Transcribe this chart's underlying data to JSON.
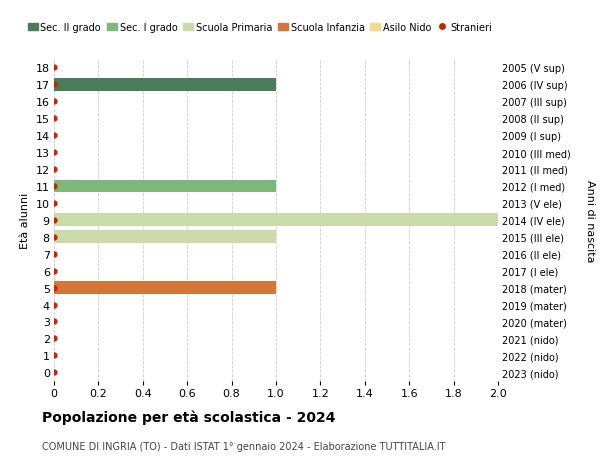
{
  "ages": [
    0,
    1,
    2,
    3,
    4,
    5,
    6,
    7,
    8,
    9,
    10,
    11,
    12,
    13,
    14,
    15,
    16,
    17,
    18
  ],
  "birth_years": [
    "2023 (nido)",
    "2022 (nido)",
    "2021 (nido)",
    "2020 (mater)",
    "2019 (mater)",
    "2018 (mater)",
    "2017 (I ele)",
    "2016 (II ele)",
    "2015 (III ele)",
    "2014 (IV ele)",
    "2013 (V ele)",
    "2012 (I med)",
    "2011 (II med)",
    "2010 (III med)",
    "2009 (I sup)",
    "2008 (II sup)",
    "2007 (III sup)",
    "2006 (IV sup)",
    "2005 (V sup)"
  ],
  "bars": [
    {
      "age": 17,
      "value": 1.0,
      "color": "#4a7c59",
      "category": "Sec. II grado"
    },
    {
      "age": 11,
      "value": 1.0,
      "color": "#7db87a",
      "category": "Sec. I grado"
    },
    {
      "age": 9,
      "value": 2.0,
      "color": "#c8dba8",
      "category": "Scuola Primaria"
    },
    {
      "age": 8,
      "value": 1.0,
      "color": "#c8dba8",
      "category": "Scuola Primaria"
    },
    {
      "age": 5,
      "value": 1.0,
      "color": "#d4763a",
      "category": "Scuola Infanzia"
    }
  ],
  "stranieri_ages": [
    0,
    1,
    2,
    3,
    4,
    5,
    6,
    7,
    8,
    9,
    10,
    11,
    12,
    13,
    14,
    15,
    16,
    17,
    18
  ],
  "stranieri_color": "#cc2200",
  "xlim": [
    0,
    2.0
  ],
  "ylim": [
    -0.5,
    18.5
  ],
  "xticks": [
    0,
    0.2,
    0.4,
    0.6,
    0.8,
    1.0,
    1.2,
    1.4,
    1.6,
    1.8,
    2.0
  ],
  "bar_height": 0.75,
  "legend_items": [
    {
      "label": "Sec. II grado",
      "color": "#4a7c59",
      "type": "patch"
    },
    {
      "label": "Sec. I grado",
      "color": "#7db87a",
      "type": "patch"
    },
    {
      "label": "Scuola Primaria",
      "color": "#c8dba8",
      "type": "patch"
    },
    {
      "label": "Scuola Infanzia",
      "color": "#d4763a",
      "type": "patch"
    },
    {
      "label": "Asilo Nido",
      "color": "#f5d98a",
      "type": "patch"
    },
    {
      "label": "Stranieri",
      "color": "#cc2200",
      "type": "circle"
    }
  ],
  "title": "Popolazione per età scolastica - 2024",
  "subtitle": "COMUNE DI INGRIA (TO) - Dati ISTAT 1° gennaio 2024 - Elaborazione TUTTITALIA.IT",
  "ylabel_left": "Età alunni",
  "ylabel_right": "Anni di nascita",
  "grid_color": "#cccccc",
  "bg_color": "#ffffff",
  "plot_bg_color": "#ffffff"
}
